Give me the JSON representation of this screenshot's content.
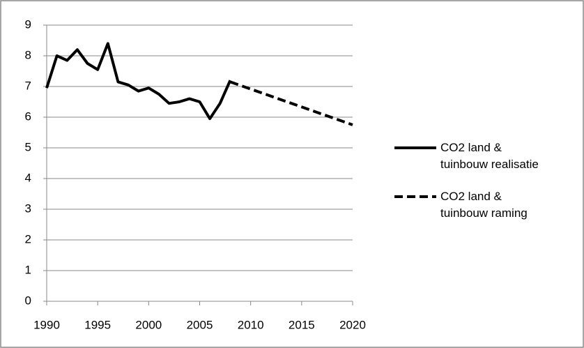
{
  "chart_data": {
    "type": "line",
    "series": [
      {
        "name": "CO2 land & tuinbouw realisatie",
        "color": "#000000",
        "dash": false,
        "x": [
          1990,
          1991,
          1992,
          1993,
          1994,
          1995,
          1996,
          1997,
          1998,
          1999,
          2000,
          2001,
          2002,
          2003,
          2004,
          2005,
          2006,
          2007,
          2008
        ],
        "values": [
          6.95,
          8.0,
          7.85,
          8.2,
          7.75,
          7.55,
          8.4,
          7.15,
          7.05,
          6.85,
          6.95,
          6.75,
          6.45,
          6.5,
          6.6,
          6.5,
          5.95,
          6.45,
          7.2
        ]
      },
      {
        "name": "CO2 land & tuinbouw raming",
        "color": "#000000",
        "dash": true,
        "x": [
          2008,
          2020
        ],
        "values": [
          7.15,
          5.75
        ]
      }
    ],
    "xlim": [
      1990,
      2020
    ],
    "xticks": [
      1990,
      1995,
      2000,
      2005,
      2010,
      2015,
      2020
    ],
    "ylim": [
      0,
      9
    ],
    "yticks": [
      0,
      1,
      2,
      3,
      4,
      5,
      6,
      7,
      8,
      9
    ],
    "grid": true
  }
}
